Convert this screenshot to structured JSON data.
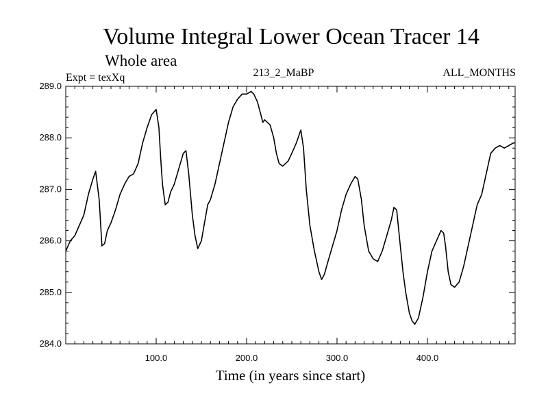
{
  "chart_data": {
    "type": "line",
    "title": "Volume Integral Lower Ocean Tracer 14",
    "subtitle": "Whole area",
    "experiment_label": "Expt = texXq",
    "run_label": "213_2_MaBP",
    "months_label": "ALL_MONTHS",
    "xlabel": "Time (in years since start)",
    "ylabel": "",
    "xlim": [
      0,
      497
    ],
    "ylim": [
      284.0,
      289.0
    ],
    "x_ticks": [
      100,
      200,
      300,
      400
    ],
    "x_tick_labels": [
      "100.0",
      "200.0",
      "300.0",
      "400.0"
    ],
    "y_ticks": [
      284,
      285,
      286,
      287,
      288,
      289
    ],
    "y_tick_labels": [
      "284.0",
      "285.0",
      "286.0",
      "287.0",
      "288.0",
      "289.0"
    ],
    "series": [
      {
        "name": "Lower Ocean Tracer 14",
        "color": "#000000",
        "x": [
          0,
          5,
          10,
          15,
          20,
          25,
          30,
          33,
          37,
          40,
          43,
          46,
          50,
          55,
          60,
          65,
          70,
          75,
          80,
          85,
          90,
          95,
          100,
          103,
          105,
          107,
          110,
          113,
          116,
          120,
          125,
          130,
          133,
          136,
          140,
          143,
          146,
          150,
          153,
          157,
          160,
          165,
          170,
          175,
          180,
          185,
          190,
          195,
          200,
          205,
          208,
          212,
          215,
          218,
          220,
          223,
          226,
          230,
          233,
          236,
          240,
          243,
          246,
          250,
          255,
          260,
          263,
          266,
          270,
          275,
          280,
          283,
          286,
          290,
          295,
          300,
          305,
          310,
          315,
          320,
          323,
          327,
          330,
          335,
          340,
          345,
          350,
          355,
          360,
          363,
          366,
          370,
          373,
          376,
          380,
          383,
          386,
          390,
          395,
          400,
          405,
          410,
          415,
          418,
          420,
          423,
          426,
          430,
          435,
          440,
          445,
          450,
          455,
          460,
          465,
          470,
          475,
          480,
          485,
          490,
          495,
          497
        ],
        "values": [
          285.8,
          286.0,
          286.1,
          286.3,
          286.5,
          286.9,
          287.2,
          287.35,
          286.8,
          285.9,
          285.95,
          286.2,
          286.35,
          286.6,
          286.9,
          287.1,
          287.25,
          287.3,
          287.5,
          287.9,
          288.2,
          288.45,
          288.55,
          288.2,
          287.6,
          287.1,
          286.7,
          286.75,
          286.95,
          287.1,
          287.4,
          287.7,
          287.75,
          287.3,
          286.5,
          286.1,
          285.85,
          286.0,
          286.3,
          286.7,
          286.8,
          287.1,
          287.5,
          287.9,
          288.3,
          288.6,
          288.75,
          288.85,
          288.85,
          288.9,
          288.85,
          288.7,
          288.5,
          288.3,
          288.35,
          288.3,
          288.25,
          288.0,
          287.7,
          287.5,
          287.45,
          287.5,
          287.55,
          287.7,
          287.9,
          288.15,
          287.8,
          287.0,
          286.3,
          285.8,
          285.4,
          285.25,
          285.35,
          285.6,
          285.9,
          286.2,
          286.6,
          286.9,
          287.1,
          287.25,
          287.2,
          286.8,
          286.3,
          285.8,
          285.65,
          285.6,
          285.8,
          286.1,
          286.4,
          286.65,
          286.6,
          285.9,
          285.4,
          285.0,
          284.6,
          284.45,
          284.38,
          284.5,
          284.9,
          285.4,
          285.8,
          286.0,
          286.2,
          286.15,
          285.9,
          285.4,
          285.15,
          285.1,
          285.2,
          285.5,
          285.9,
          286.3,
          286.7,
          286.9,
          287.3,
          287.7,
          287.8,
          287.85,
          287.8,
          287.85,
          287.9,
          287.9
        ]
      }
    ]
  }
}
